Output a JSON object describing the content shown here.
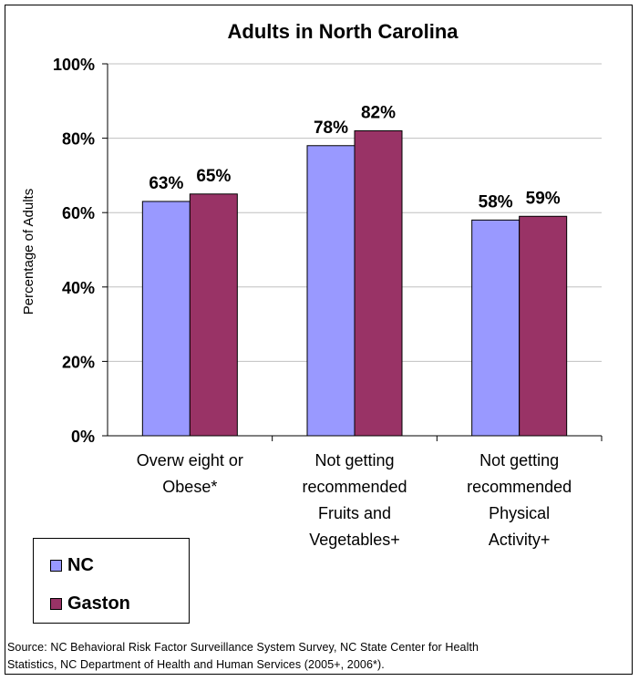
{
  "chart_data": {
    "type": "bar",
    "title": "Adults in North Carolina",
    "ylabel": "Percentage of Adults",
    "xlabel": "",
    "ylim": [
      0,
      100
    ],
    "yticks": [
      "0%",
      "20%",
      "40%",
      "60%",
      "80%",
      "100%"
    ],
    "ytick_values": [
      0,
      20,
      40,
      60,
      80,
      100
    ],
    "categories": [
      [
        "Overw eight or",
        "Obese*"
      ],
      [
        "Not getting",
        "recommended",
        "Fruits and",
        "Vegetables+"
      ],
      [
        "Not getting",
        "recommended",
        "Physical",
        "Activity+"
      ]
    ],
    "series": [
      {
        "name": "NC",
        "color": "#9999ff",
        "values": [
          63,
          78,
          58
        ],
        "labels": [
          "63%",
          "78%",
          "58%"
        ]
      },
      {
        "name": "Gaston",
        "color": "#993366",
        "values": [
          65,
          82,
          59
        ],
        "labels": [
          "65%",
          "82%",
          "59%"
        ]
      }
    ],
    "grid": true,
    "legend_position": "bottom-left"
  },
  "source_lines": [
    "Source: NC Behavioral Risk Factor Surveillance System Survey, NC State Center for Health",
    "Statistics, NC Department of Health and Human Services (2005+, 2006*)."
  ]
}
